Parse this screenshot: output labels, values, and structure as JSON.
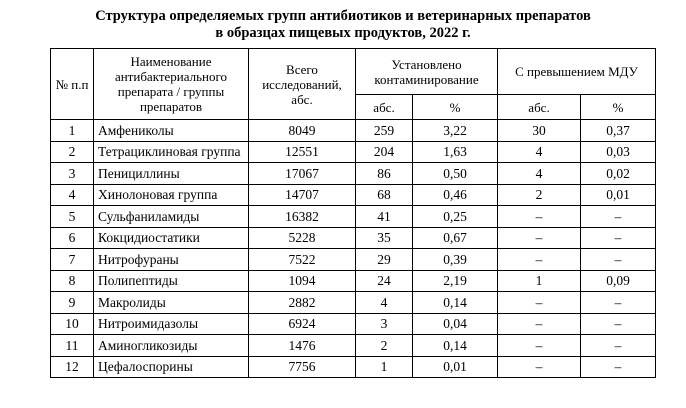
{
  "header": {
    "title_lines": [
      "Структура определяемых групп антибиотиков и ветеринарных препаратов",
      "в образцах пищевых продуктов, 2022 г."
    ]
  },
  "table": {
    "columns": {
      "number": "№ п.п",
      "name": "Наименование антибактериального препарата / группы препаратов",
      "total": "Всего исследований, абс.",
      "contaminated": "Установлено контаминирование",
      "exceeding": "С превышением МДУ",
      "sub": [
        "абс.",
        "%",
        "абс.",
        "%"
      ]
    },
    "rows": [
      [
        "1",
        "Амфениколы",
        "8049",
        "259",
        "3,22",
        "30",
        "0,37"
      ],
      [
        "2",
        "Тетрациклиновая группа",
        "12551",
        "204",
        "1,63",
        "4",
        "0,03"
      ],
      [
        "3",
        "Пенициллины",
        "17067",
        "86",
        "0,50",
        "4",
        "0,02"
      ],
      [
        "4",
        "Хинолоновая группа",
        "14707",
        "68",
        "0,46",
        "2",
        "0,01"
      ],
      [
        "5",
        "Сульфаниламиды",
        "16382",
        "41",
        "0,25",
        "–",
        "–"
      ],
      [
        "6",
        "Кокцидиостатики",
        "5228",
        "35",
        "0,67",
        "–",
        "–"
      ],
      [
        "7",
        "Нитрофураны",
        "7522",
        "29",
        "0,39",
        "–",
        "–"
      ],
      [
        "8",
        "Полипептиды",
        "1094",
        "24",
        "2,19",
        "1",
        "0,09"
      ],
      [
        "9",
        "Макролиды",
        "2882",
        "4",
        "0,14",
        "–",
        "–"
      ],
      [
        "10",
        "Нитроимидазолы",
        "6924",
        "3",
        "0,04",
        "–",
        "–"
      ],
      [
        "11",
        "Аминогликозиды",
        "1476",
        "2",
        "0,14",
        "–",
        "–"
      ],
      [
        "12",
        "Цефалоспорины",
        "7756",
        "1",
        "0,01",
        "–",
        "–"
      ]
    ]
  }
}
